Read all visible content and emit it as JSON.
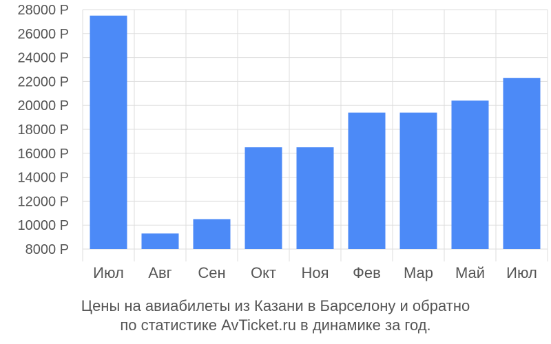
{
  "chart_data": {
    "type": "bar",
    "categories": [
      "Июл",
      "Авг",
      "Сен",
      "Окт",
      "Ноя",
      "Фев",
      "Мар",
      "Май",
      "Июл"
    ],
    "values": [
      27500,
      9300,
      10500,
      16500,
      16500,
      19400,
      19400,
      20400,
      22300
    ],
    "ylim": [
      8000,
      28000
    ],
    "yticks": [
      8000,
      10000,
      12000,
      14000,
      16000,
      18000,
      20000,
      22000,
      24000,
      26000,
      28000
    ],
    "ytick_labels": [
      "8000 Р",
      "10000 Р",
      "12000 Р",
      "14000 Р",
      "16000 Р",
      "18000 Р",
      "20000 Р",
      "22000 Р",
      "24000 Р",
      "26000 Р",
      "28000 Р"
    ],
    "grid": true,
    "bar_color": "#4c8af7",
    "title": "",
    "xlabel": "",
    "ylabel": ""
  },
  "caption": {
    "line1": "Цены на авиабилеты из Казани в Барселону и обратно",
    "line2": "по статистике AvTicket.ru в динамике за год."
  }
}
